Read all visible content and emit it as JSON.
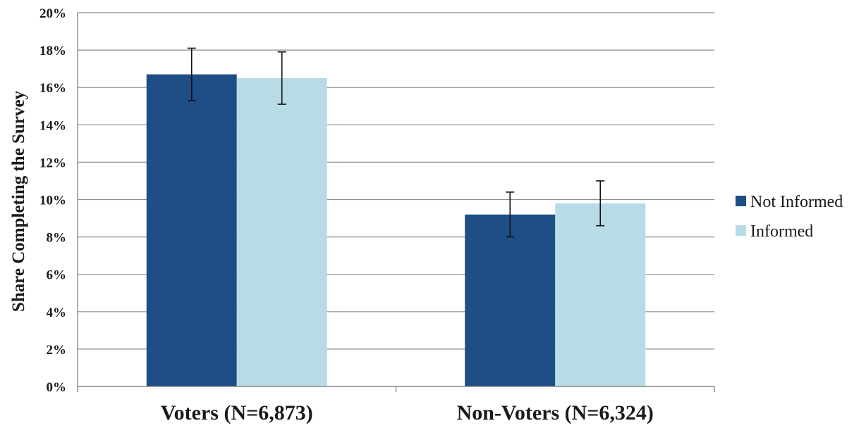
{
  "chart_data": {
    "type": "bar",
    "title": "",
    "xlabel": "",
    "ylabel": "Share Completing the Survey",
    "ylim": [
      0,
      20
    ],
    "yticks": [
      0,
      2,
      4,
      6,
      8,
      10,
      12,
      14,
      16,
      18,
      20
    ],
    "ytick_labels": [
      "0%",
      "2%",
      "4%",
      "6%",
      "8%",
      "10%",
      "12%",
      "14%",
      "16%",
      "18%",
      "20%"
    ],
    "value_unit": "%",
    "categories": [
      "Voters (N=6,873)",
      "Non-Voters (N=6,324)"
    ],
    "series": [
      {
        "name": "Not Informed",
        "color": "#1f4e86",
        "values": [
          16.7,
          9.2
        ],
        "error_low": [
          15.3,
          8.0
        ],
        "error_high": [
          18.1,
          10.4
        ]
      },
      {
        "name": "Informed",
        "color": "#b7dce6",
        "values": [
          16.5,
          9.8
        ],
        "error_low": [
          15.1,
          8.6
        ],
        "error_high": [
          17.9,
          11.0
        ]
      }
    ],
    "grid": true,
    "legend_position": "right"
  }
}
